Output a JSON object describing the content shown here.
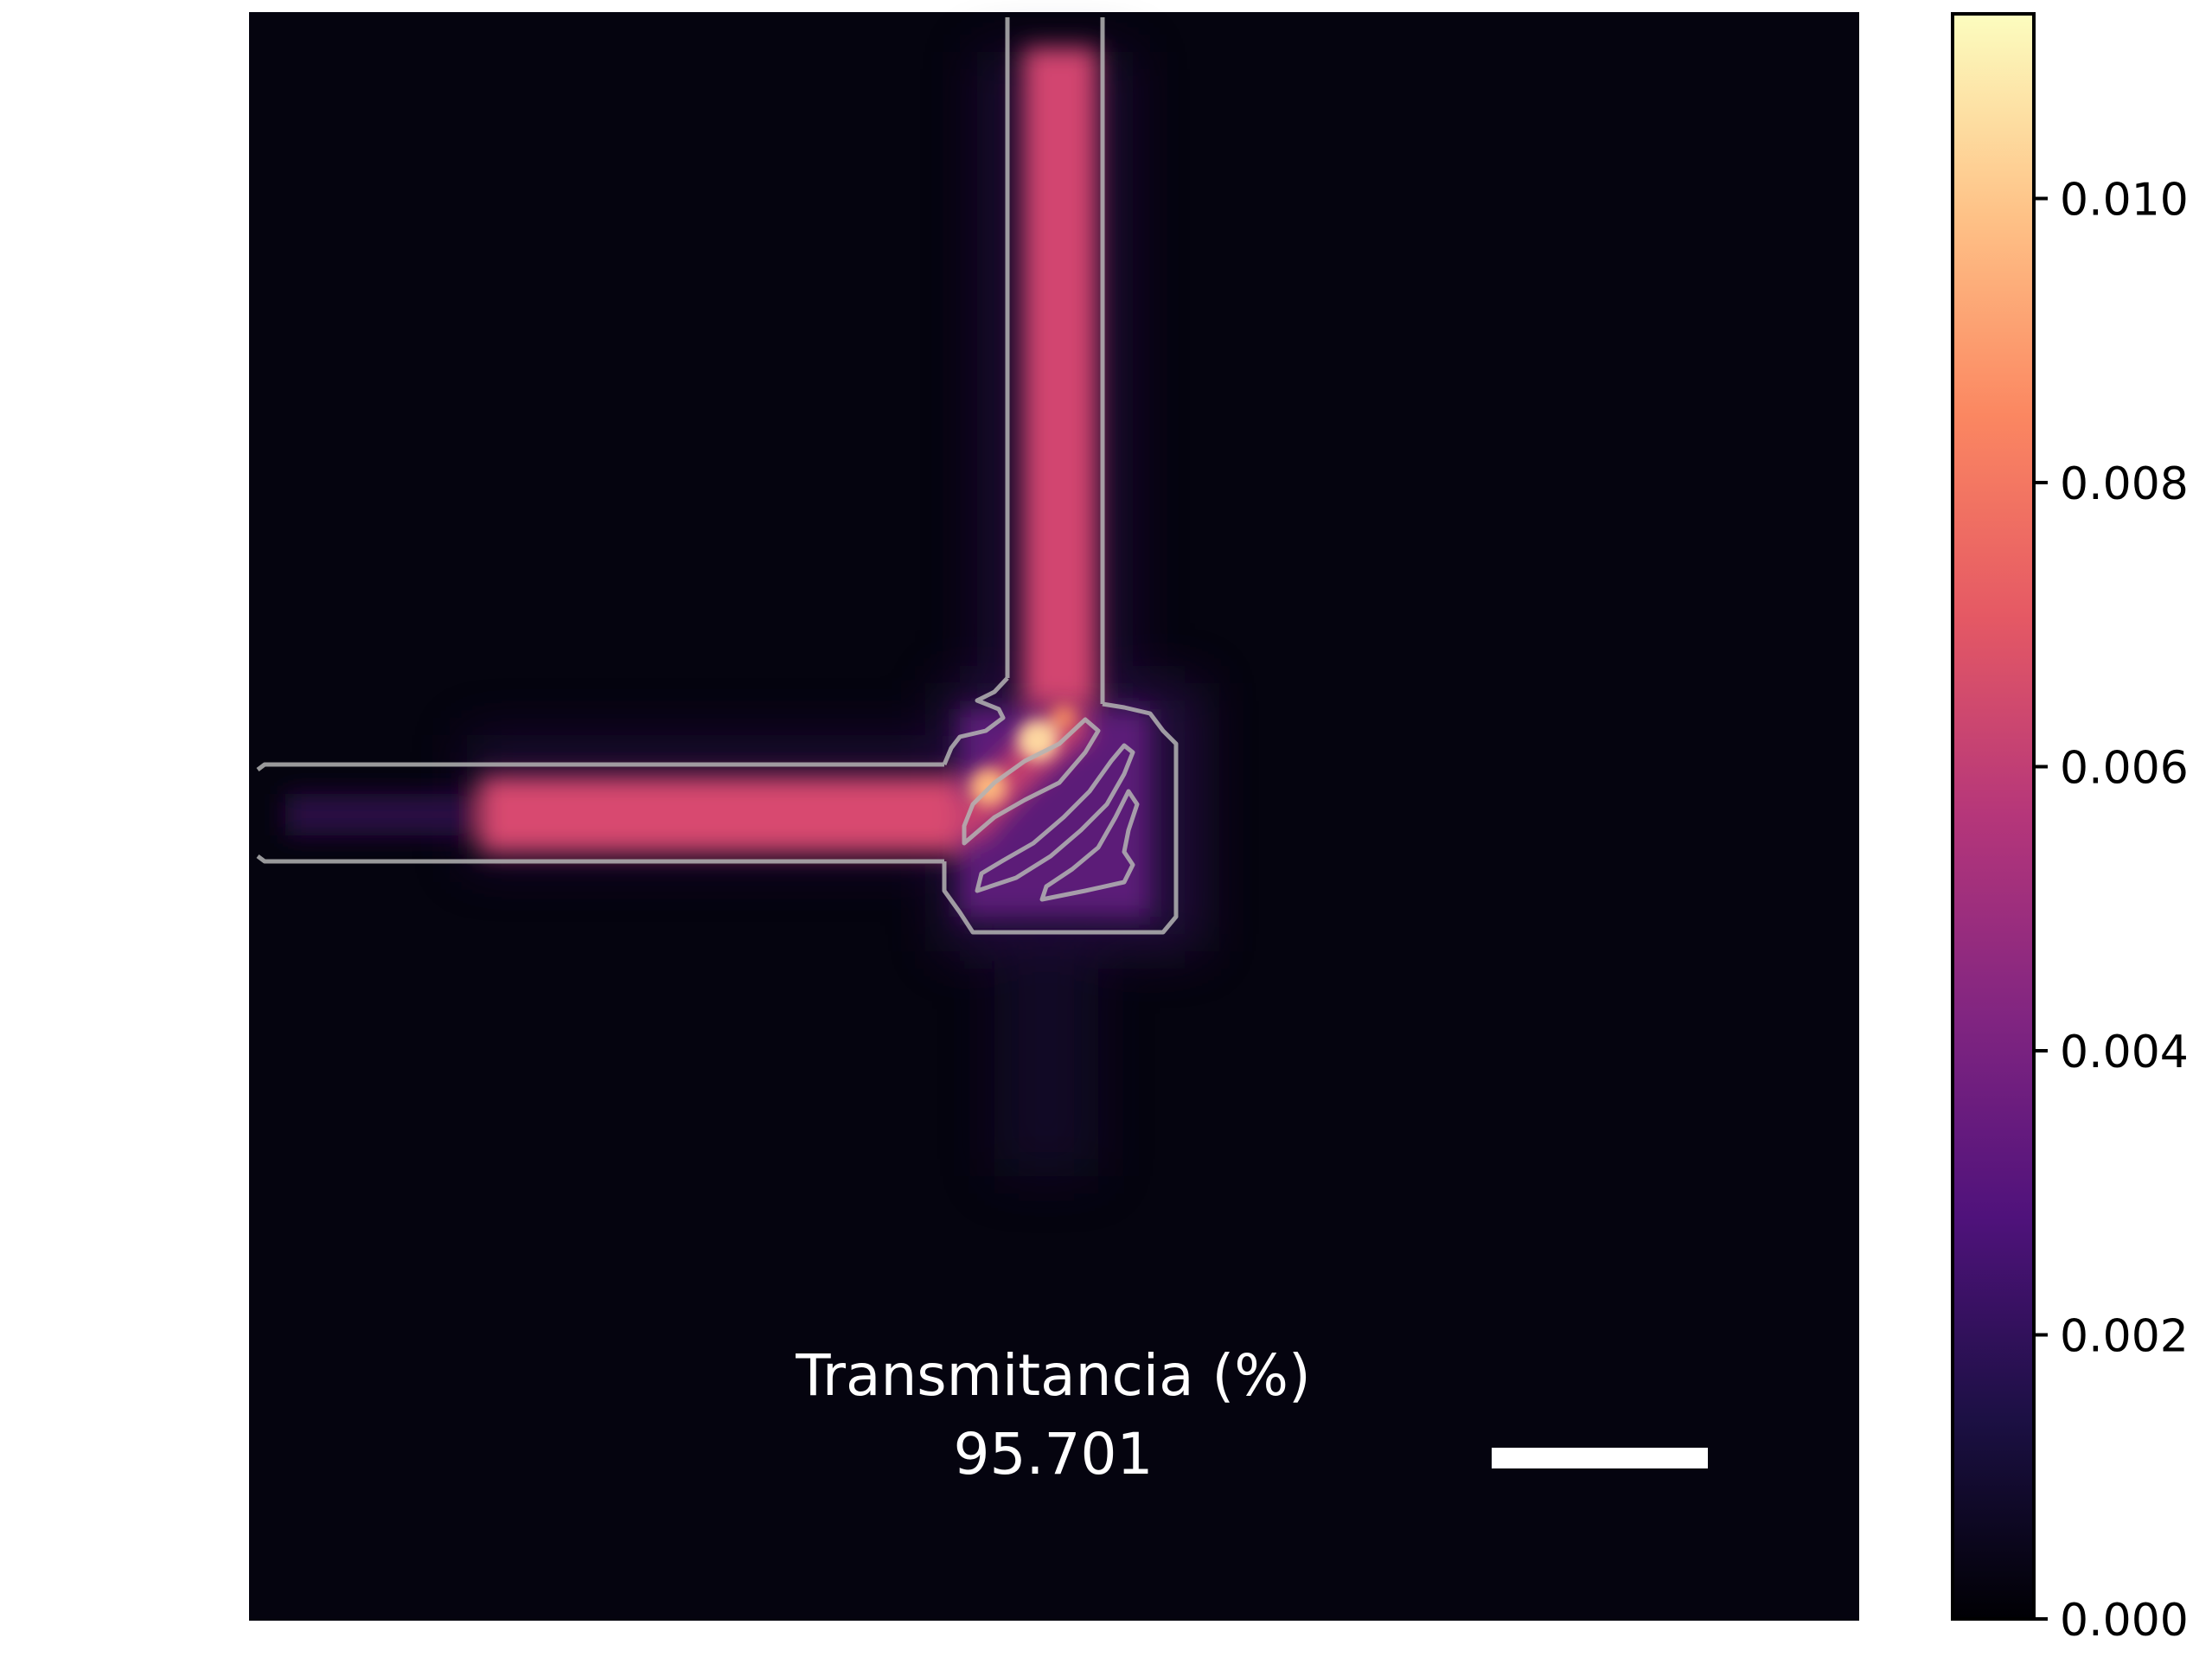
{
  "chart_data": {
    "type": "heatmap",
    "title": "",
    "xlabel": "",
    "ylabel": "",
    "colormap": "magma",
    "colormap_stops": [
      "#000004",
      "#1c1044",
      "#4f127b",
      "#812581",
      "#b5367a",
      "#e55964",
      "#fb8761",
      "#fec287",
      "#fcfdbf"
    ],
    "vmin": 0.0,
    "vmax": 0.0113,
    "colorbar_ticks": [
      0.0,
      0.002,
      0.004,
      0.006,
      0.008,
      0.01
    ],
    "colorbar_tick_labels": [
      "0.000",
      "0.002",
      "0.004",
      "0.006",
      "0.008",
      "0.010"
    ],
    "annotation": {
      "label": "Transmitancia (%)",
      "value": "95.701"
    },
    "structure_outline_color": "#b4b4b4",
    "scale_bar_color": "#ffffff"
  }
}
